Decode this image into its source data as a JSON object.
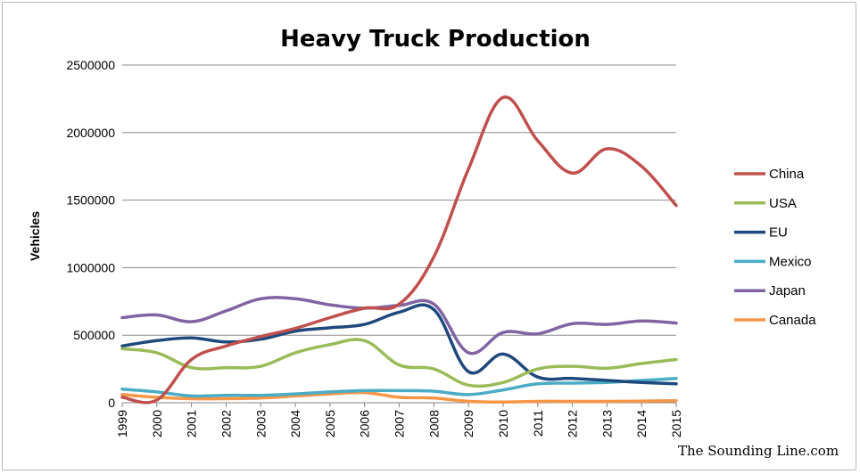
{
  "chart_data": {
    "type": "line",
    "title": "Heavy Truck Production",
    "xlabel": "",
    "ylabel": "Vehicles",
    "x": [
      "1999",
      "2000",
      "2001",
      "2002",
      "2003",
      "2004",
      "2005",
      "2006",
      "2007",
      "2008",
      "2009",
      "2010",
      "2011",
      "2012",
      "2013",
      "2014",
      "2015"
    ],
    "ylim": [
      0,
      2500000
    ],
    "yticks": [
      "0",
      "500000",
      "1000000",
      "1500000",
      "2000000",
      "2500000"
    ],
    "grid": "horizontal",
    "legend_position": "right",
    "series": [
      {
        "name": "China",
        "color": "#c0504d",
        "values": [
          40000,
          20000,
          320000,
          420000,
          490000,
          550000,
          630000,
          700000,
          730000,
          1080000,
          1730000,
          2260000,
          1940000,
          1700000,
          1880000,
          1750000,
          1460000
        ]
      },
      {
        "name": "USA",
        "color": "#9bbb59",
        "values": [
          400000,
          370000,
          260000,
          260000,
          270000,
          370000,
          430000,
          460000,
          280000,
          250000,
          130000,
          150000,
          250000,
          270000,
          255000,
          290000,
          320000
        ]
      },
      {
        "name": "EU",
        "color": "#1f497d",
        "values": [
          420000,
          460000,
          480000,
          450000,
          470000,
          530000,
          555000,
          580000,
          670000,
          690000,
          230000,
          360000,
          190000,
          180000,
          165000,
          150000,
          140000
        ]
      },
      {
        "name": "Mexico",
        "color": "#4bacc6",
        "values": [
          100000,
          80000,
          50000,
          55000,
          55000,
          65000,
          80000,
          90000,
          90000,
          85000,
          60000,
          95000,
          140000,
          145000,
          150000,
          165000,
          180000
        ]
      },
      {
        "name": "Japan",
        "color": "#8064a2",
        "values": [
          630000,
          650000,
          600000,
          680000,
          770000,
          770000,
          725000,
          700000,
          720000,
          730000,
          370000,
          520000,
          510000,
          585000,
          580000,
          605000,
          590000
        ]
      },
      {
        "name": "Canada",
        "color": "#f79646",
        "values": [
          60000,
          40000,
          30000,
          30000,
          35000,
          50000,
          65000,
          75000,
          40000,
          35000,
          10000,
          5000,
          10000,
          10000,
          10000,
          12000,
          15000
        ]
      }
    ]
  },
  "watermark": "The Sounding Line.com"
}
